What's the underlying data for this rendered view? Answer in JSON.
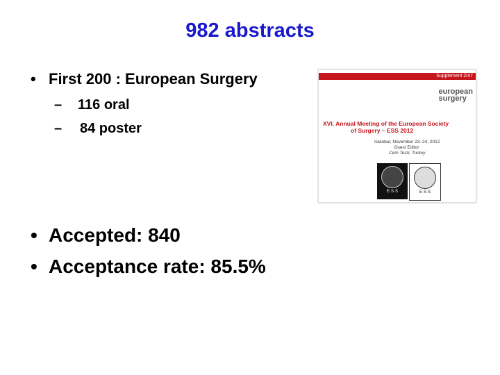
{
  "slide": {
    "title": "982 abstracts",
    "bullets": [
      {
        "text": "First 200 : European Surgery",
        "sub": [
          "116 oral",
          "84 poster"
        ]
      },
      {
        "text": "Accepted: 840"
      },
      {
        "text": "Acceptance rate: 85.5%"
      }
    ],
    "cover": {
      "supplement": "Supplement 2/47",
      "journal_line1": "european",
      "journal_line2": "surgery",
      "meeting_line1": "XVI. Annual Meeting of the European Society",
      "meeting_line2": "of Surgery – ESS 2012",
      "place": "Istanbul, November 23–24, 2012",
      "editor_label": "Guest Editor:",
      "editor": "Cem Terzi, Turkey",
      "logo_text": "E·S·S"
    }
  }
}
